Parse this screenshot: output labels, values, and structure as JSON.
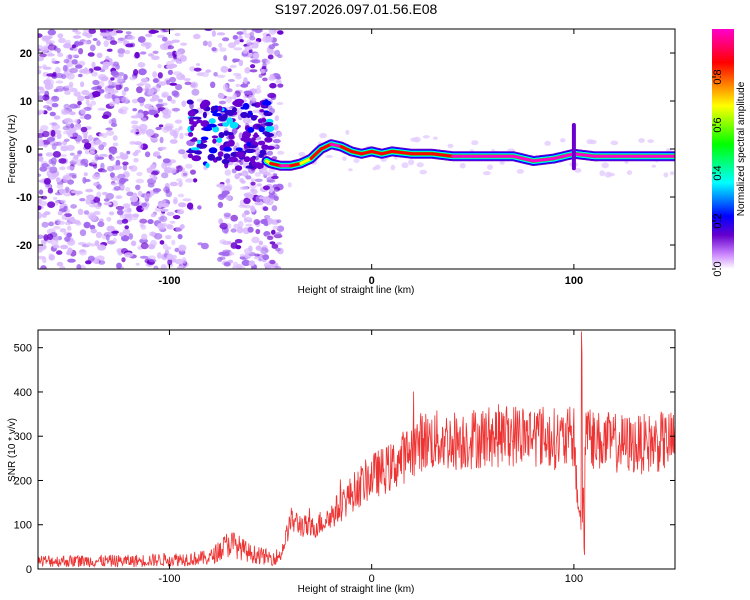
{
  "title": "S197.2026.097.01.56.E08",
  "chart_data": [
    {
      "type": "heatmap",
      "name": "spectrogram",
      "title": "S197.2026.097.01.56.E08",
      "xlabel": "Height of straight line (km)",
      "ylabel": "Frequency (Hz)",
      "xlim": [
        -165,
        150
      ],
      "ylim": [
        -25,
        25
      ],
      "xticks": [
        -100,
        0,
        100
      ],
      "yticks": [
        -20,
        -10,
        0,
        10,
        20
      ],
      "grid": false,
      "colorbar": {
        "label": "Normalized spectral amplitude",
        "range": [
          0.0,
          1.0
        ],
        "ticks": [
          0.0,
          0.2,
          0.4,
          0.6,
          0.8
        ],
        "colormap": [
          "#ffffff",
          "#cc66ff",
          "#6600cc",
          "#0000ff",
          "#00ffff",
          "#00ff00",
          "#ffff00",
          "#ff0000",
          "#ff00cc"
        ]
      },
      "ridge": {
        "x": [
          -52,
          -50,
          -45,
          -40,
          -35,
          -30,
          -25,
          -20,
          -15,
          -10,
          -5,
          0,
          5,
          10,
          20,
          30,
          40,
          50,
          60,
          70,
          80,
          90,
          95,
          100,
          110,
          120,
          130,
          140,
          150
        ],
        "freq_hz": [
          -2.5,
          -3,
          -3.5,
          -3.5,
          -3,
          -2,
          0,
          1,
          0.5,
          -0.5,
          -1,
          -0.5,
          -1,
          -0.5,
          -1,
          -1,
          -1.5,
          -1.5,
          -1.5,
          -1.5,
          -2.5,
          -2,
          -1.5,
          -1,
          -1.5,
          -1.5,
          -1.5,
          -1.5,
          -1.5
        ],
        "amplitude": [
          0.5,
          0.7,
          0.9,
          0.9,
          0.7,
          0.6,
          0.8,
          0.9,
          0.85,
          0.8,
          0.7,
          0.8,
          0.75,
          0.8,
          0.7,
          0.7,
          0.8,
          0.95,
          0.95,
          0.9,
          0.95,
          0.9,
          0.85,
          0.9,
          0.95,
          0.95,
          0.95,
          0.95,
          0.95
        ]
      },
      "noise_region_x": [
        -165,
        -45
      ]
    },
    {
      "type": "line",
      "name": "snr",
      "xlabel": "Height of straight line (km)",
      "ylabel": "SNR (10 * v/v)",
      "xlim": [
        -165,
        150
      ],
      "ylim": [
        0,
        540
      ],
      "xticks": [
        -100,
        0,
        100
      ],
      "yticks": [
        0,
        100,
        200,
        300,
        400,
        500
      ],
      "grid": false,
      "color": "#ee3333",
      "envelope": {
        "x": [
          -165,
          -120,
          -80,
          -70,
          -60,
          -50,
          -45,
          -40,
          -30,
          -20,
          -10,
          0,
          10,
          20,
          25,
          40,
          60,
          80,
          95,
          100,
          102,
          104,
          106,
          110,
          130,
          150
        ],
        "y": [
          18,
          18,
          25,
          60,
          35,
          25,
          30,
          110,
          90,
          120,
          170,
          210,
          230,
          270,
          290,
          290,
          300,
          305,
          290,
          300,
          150,
          100,
          330,
          290,
          280,
          290
        ]
      },
      "spike": {
        "x": [
          104,
          105
        ],
        "y": [
          540,
          25
        ]
      }
    }
  ]
}
